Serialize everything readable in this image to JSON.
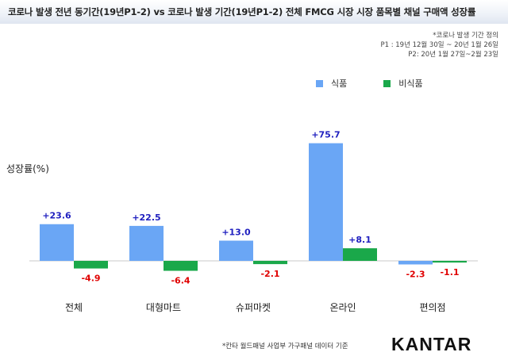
{
  "title": "코로나 발생 전년 동기간(19년P1-2) vs 코로나 발생 기간(19년P1-2) 전체 FMCG 시장 시장 품목별 채널 구매액 성장률",
  "note": {
    "line1": "*코로나 발생 기간 정의",
    "line2": "P1 : 19년 12월 30일 ~ 20년 1월 26일",
    "line3": "P2: 20년 1월 27일~2월 23일"
  },
  "footer_note": "*칸타 월드패널 사업부 가구패널 데이터 기준",
  "logo": "KANTAR",
  "colors": {
    "food": "#6aa6f5",
    "nonfood": "#1aa84a",
    "positive_label": "#1f1fbf",
    "negative_label": "#e00000"
  },
  "chart_data": {
    "type": "bar",
    "ylabel": "성장률(%)",
    "categories": [
      "전체",
      "대형마트",
      "슈퍼마켓",
      "온라인",
      "편의점"
    ],
    "series": [
      {
        "name": "식품",
        "values": [
          23.6,
          22.5,
          13.0,
          75.7,
          -2.3
        ],
        "labels": [
          "+23.6",
          "+22.5",
          "+13.0",
          "+75.7",
          "-2.3"
        ]
      },
      {
        "name": "비식품",
        "values": [
          -4.9,
          -6.4,
          -2.1,
          8.1,
          -1.1
        ],
        "labels": [
          "-4.9",
          "-6.4",
          "-2.1",
          "+8.1",
          "-1.1"
        ]
      }
    ],
    "legend_position": "top-right",
    "grid": false
  }
}
